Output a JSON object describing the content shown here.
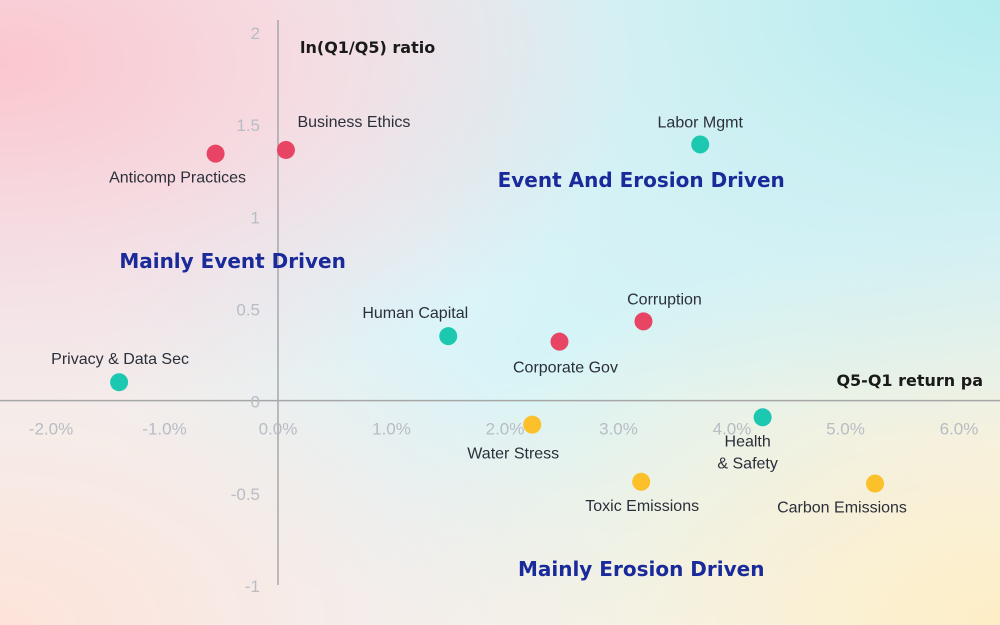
{
  "chart_data": {
    "type": "scatter",
    "title": "",
    "xlabel": "Q5-Q1 return pa",
    "ylabel": "ln(Q1/Q5) ratio",
    "xlim": [
      -2.0,
      6.0
    ],
    "ylim": [
      -1.0,
      2.0
    ],
    "x_ticks": [
      "-2.0%",
      "-1.0%",
      "0.0%",
      "1.0%",
      "2.0%",
      "3.0%",
      "4.0%",
      "5.0%",
      "6.0%"
    ],
    "y_ticks": [
      "-1",
      "-0.5",
      "0",
      "0.5",
      "1",
      "1.5",
      "2"
    ],
    "grid": false,
    "legend": "none",
    "colors": {
      "red": "#e84463",
      "teal": "#1cc9b0",
      "yellow": "#fcc02b",
      "axis": "#a7a7a7",
      "region": "#1b2a9a"
    },
    "regions": [
      {
        "label": "Mainly Event Driven",
        "x": -0.4,
        "y": 0.72
      },
      {
        "label": "Event And Erosion Driven",
        "x": 3.2,
        "y": 1.16
      },
      {
        "label": "Mainly Erosion Driven",
        "x": 3.2,
        "y": -0.95
      }
    ],
    "points": [
      {
        "label": "Business Ethics",
        "x": 0.07,
        "y": 1.36,
        "color": "red"
      },
      {
        "label": "Anticomp Practices",
        "x": -0.55,
        "y": 1.34,
        "color": "red"
      },
      {
        "label": "Corruption",
        "x": 3.22,
        "y": 0.43,
        "color": "red"
      },
      {
        "label": "Corporate Gov",
        "x": 2.48,
        "y": 0.32,
        "color": "red"
      },
      {
        "label": "Labor Mgmt",
        "x": 3.72,
        "y": 1.39,
        "color": "teal"
      },
      {
        "label": "Human Capital",
        "x": 1.5,
        "y": 0.35,
        "color": "teal"
      },
      {
        "label": "Privacy & Data Sec",
        "x": -1.4,
        "y": 0.1,
        "color": "teal"
      },
      {
        "label": "Health & Safety",
        "x": 4.27,
        "y": -0.09,
        "color": "teal"
      },
      {
        "label": "Water Stress",
        "x": 2.24,
        "y": -0.13,
        "color": "yellow"
      },
      {
        "label": "Toxic Emissions",
        "x": 3.2,
        "y": -0.44,
        "color": "yellow"
      },
      {
        "label": "Carbon Emissions",
        "x": 5.26,
        "y": -0.45,
        "color": "yellow"
      }
    ]
  }
}
